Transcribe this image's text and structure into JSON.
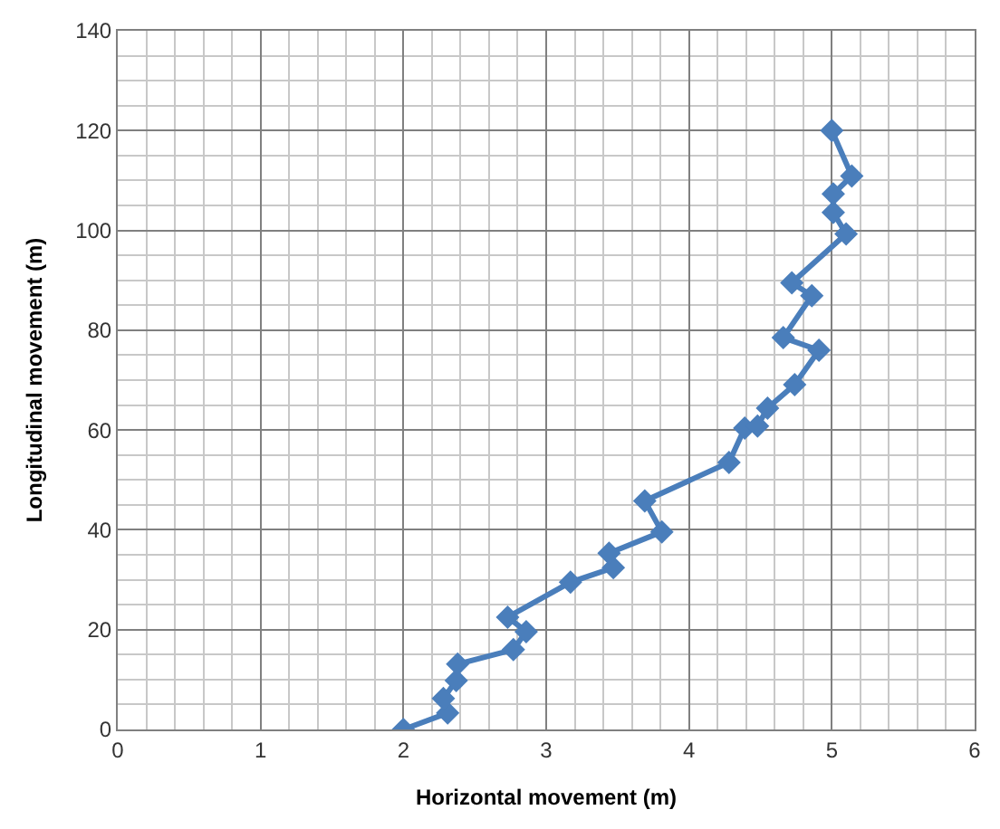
{
  "chart_data": {
    "type": "line",
    "xlabel": "Horizontal movement (m)",
    "ylabel": "Longitudinal movement (m)",
    "x": [
      2.0,
      2.31,
      2.28,
      2.37,
      2.38,
      2.77,
      2.86,
      2.73,
      3.17,
      3.47,
      3.44,
      3.81,
      3.69,
      4.28,
      4.39,
      4.48,
      4.55,
      4.74,
      4.91,
      4.66,
      4.86,
      4.72,
      5.1,
      5.01,
      5.01,
      5.14,
      5.0
    ],
    "series": [
      {
        "color": "#4a7ebb",
        "values": [
          0,
          3.3,
          6.2,
          9.8,
          13.1,
          16,
          19.6,
          22.5,
          29.5,
          32.4,
          35.3,
          39.6,
          45.8,
          53.5,
          60.4,
          60.8,
          64.4,
          69.1,
          76,
          78.5,
          86.9,
          89.5,
          99.3,
          103.6,
          107.3,
          110.9,
          120
        ]
      }
    ],
    "xlim": [
      0,
      6
    ],
    "xticks": [
      0,
      1,
      2,
      3,
      4,
      5,
      6
    ],
    "ylim": [
      0,
      140
    ],
    "yticks": [
      0,
      20,
      40,
      60,
      80,
      100,
      120,
      140
    ],
    "grid": true,
    "marker": "diamond",
    "line_style": "solid",
    "legend": false
  }
}
